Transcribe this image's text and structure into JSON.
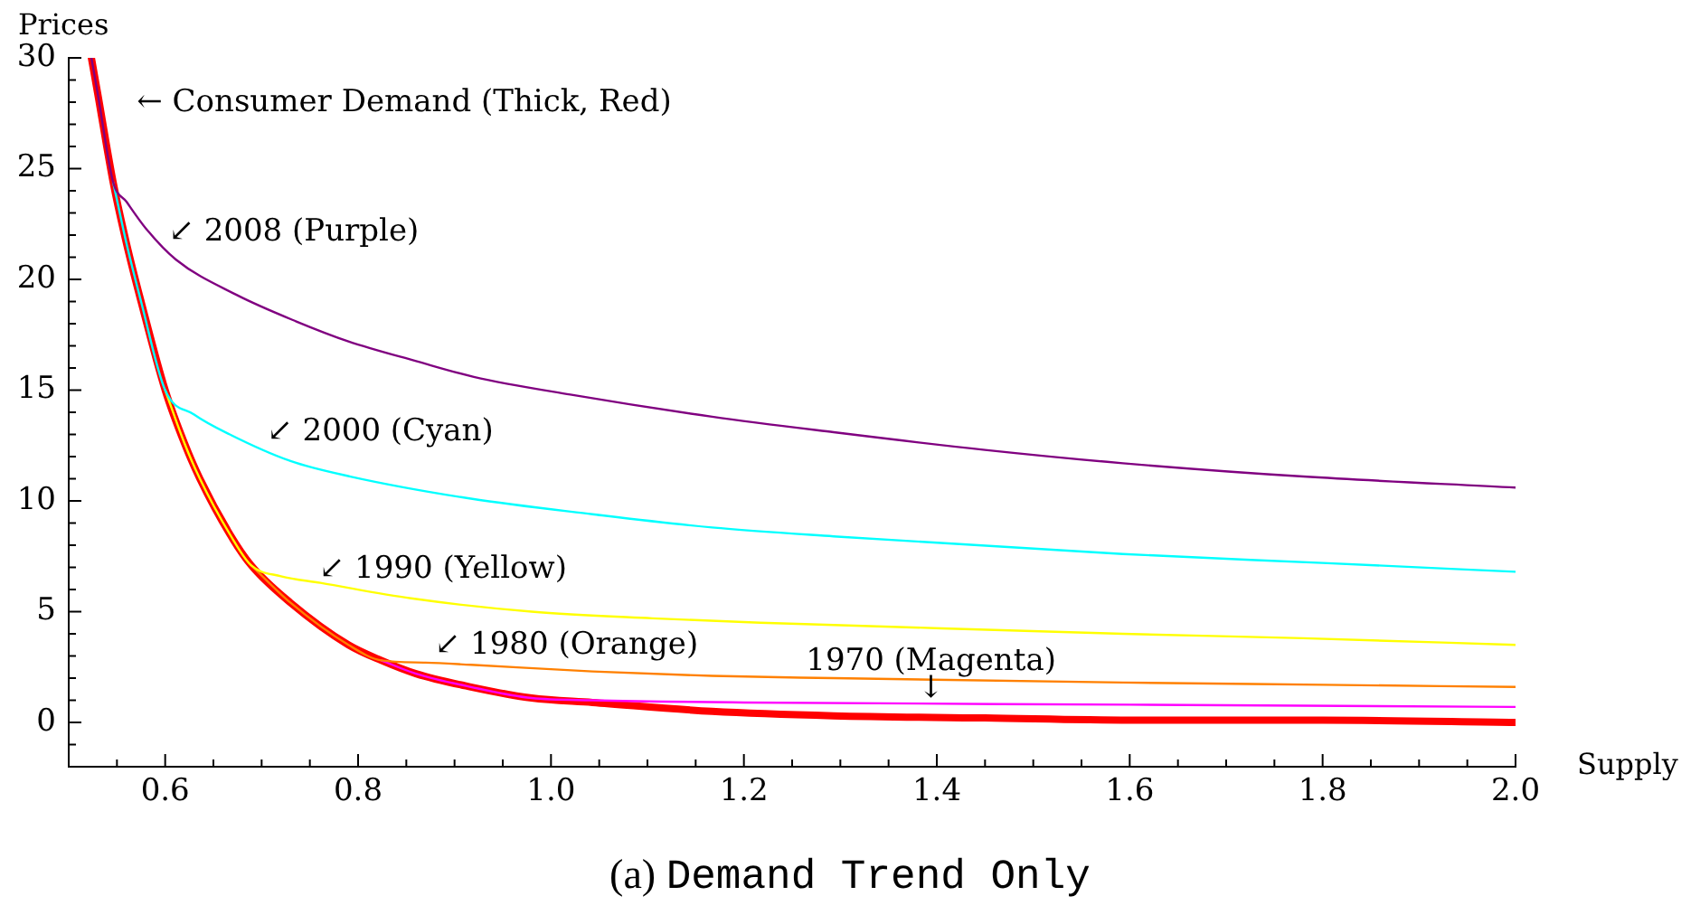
{
  "chart_data": {
    "type": "line",
    "title": "(a) Demand Trend Only",
    "xlabel": "Supply",
    "ylabel": "Prices",
    "xlim": [
      0.5,
      2.0
    ],
    "ylim": [
      -2,
      30
    ],
    "xticks": [
      {
        "value": 0.55,
        "label": null
      },
      0.6,
      {
        "value": 0.65,
        "label": null
      },
      {
        "value": 0.7,
        "label": null
      },
      {
        "value": 0.75,
        "label": null
      },
      0.8,
      {
        "value": 0.85,
        "label": null
      },
      {
        "value": 0.9,
        "label": null
      },
      {
        "value": 0.95,
        "label": null
      },
      {
        "value": 1,
        "label": "1.0"
      },
      {
        "value": 1.05,
        "label": null
      },
      {
        "value": 1.1,
        "label": null
      },
      {
        "value": 1.15,
        "label": null
      },
      1.2,
      {
        "value": 1.25,
        "label": null
      },
      {
        "value": 1.3,
        "label": null
      },
      {
        "value": 1.35,
        "label": null
      },
      1.4,
      {
        "value": 1.45,
        "label": null
      },
      {
        "value": 1.5,
        "label": null
      },
      {
        "value": 1.55,
        "label": null
      },
      1.6,
      {
        "value": 1.65,
        "label": null
      },
      {
        "value": 1.7,
        "label": null
      },
      {
        "value": 1.75,
        "label": null
      },
      1.8,
      {
        "value": 1.85,
        "label": null
      },
      {
        "value": 1.9,
        "label": null
      },
      {
        "value": 1.95,
        "label": null
      },
      {
        "value": 2,
        "label": "2.0"
      }
    ],
    "yticks": [
      {
        "value": -1,
        "label": null
      },
      0,
      {
        "value": 1,
        "label": null
      },
      {
        "value": 2,
        "label": null
      },
      {
        "value": 3,
        "label": null
      },
      {
        "value": 4,
        "label": null
      },
      5,
      {
        "value": 6,
        "label": null
      },
      {
        "value": 7,
        "label": null
      },
      {
        "value": 8,
        "label": null
      },
      {
        "value": 9,
        "label": null
      },
      10,
      {
        "value": 11,
        "label": null
      },
      {
        "value": 12,
        "label": null
      },
      {
        "value": 13,
        "label": null
      },
      {
        "value": 14,
        "label": null
      },
      15,
      {
        "value": 16,
        "label": null
      },
      {
        "value": 17,
        "label": null
      },
      {
        "value": 18,
        "label": null
      },
      {
        "value": 19,
        "label": null
      },
      20,
      {
        "value": 21,
        "label": null
      },
      {
        "value": 22,
        "label": null
      },
      {
        "value": 23,
        "label": null
      },
      {
        "value": 24,
        "label": null
      },
      25,
      {
        "value": 26,
        "label": null
      },
      {
        "value": 27,
        "label": null
      },
      {
        "value": 28,
        "label": null
      },
      {
        "value": 29,
        "label": null
      },
      30
    ],
    "series": [
      {
        "name": "← Consumer Demand (Thick, Red)",
        "color": "#ff0000",
        "x": [
          0.5235,
          0.53,
          0.546,
          0.56,
          0.575,
          0.6,
          0.62,
          0.636,
          0.667,
          0.689,
          0.73,
          0.79,
          0.824,
          0.86,
          0.917,
          0.98,
          1.043,
          1.167,
          1.293,
          1.45,
          1.6,
          1.8,
          2.0
        ],
        "values": [
          30,
          28.4,
          24.4,
          21.6,
          19.0,
          15.0,
          12.6,
          11.0,
          8.5,
          7.1,
          5.4,
          3.5,
          2.8,
          2.2,
          1.6,
          1.1,
          0.9,
          0.5,
          0.3,
          0.2,
          0.1,
          0.1,
          0.0
        ]
      },
      {
        "name": "↙ 2008 (Purple)",
        "color": "#800080",
        "x": [
          0.5235,
          0.53,
          0.546,
          0.56,
          0.58,
          0.611,
          0.674,
          0.736,
          0.79,
          0.861,
          0.92,
          1.02,
          1.167,
          1.293,
          1.45,
          1.593,
          1.78,
          2.0
        ],
        "values": [
          30,
          28.4,
          24.4,
          23.5,
          22.3,
          20.9,
          19.3,
          18.1,
          17.2,
          16.3,
          15.6,
          14.8,
          13.8,
          13.1,
          12.3,
          11.7,
          11.1,
          10.6
        ]
      },
      {
        "name": "↙ 2000 (Cyan)",
        "color": "#00ffff",
        "x": [
          0.546,
          0.56,
          0.575,
          0.6,
          0.63,
          0.667,
          0.73,
          0.792,
          0.917,
          1.043,
          1.167,
          1.293,
          1.593,
          1.8,
          2.0
        ],
        "values": [
          24.4,
          21.6,
          19.0,
          15.0,
          13.9,
          13.0,
          11.8,
          11.1,
          10.1,
          9.4,
          8.8,
          8.4,
          7.6,
          7.2,
          6.8
        ]
      },
      {
        "name": "↙ 1990 (Yellow)",
        "color": "#ffff00",
        "x": [
          0.6,
          0.62,
          0.636,
          0.667,
          0.689,
          0.72,
          0.761,
          0.855,
          0.98,
          1.105,
          1.217,
          1.293,
          1.593,
          1.78,
          2.0
        ],
        "values": [
          15.0,
          12.6,
          11.0,
          8.5,
          7.1,
          6.6,
          6.3,
          5.6,
          5.0,
          4.7,
          4.5,
          4.4,
          4.0,
          3.8,
          3.5
        ]
      },
      {
        "name": "↙ 1980 (Orange)",
        "color": "#ff8000",
        "x": [
          0.689,
          0.73,
          0.79,
          0.824,
          0.87,
          0.917,
          1.043,
          1.167,
          1.293,
          1.593,
          1.8,
          2.0
        ],
        "values": [
          7.1,
          5.4,
          3.5,
          2.8,
          2.7,
          2.6,
          2.3,
          2.1,
          2.0,
          1.8,
          1.7,
          1.6
        ]
      },
      {
        "name": "1970 (Magenta)\n↓",
        "color": "#ff00ff",
        "x": [
          0.824,
          0.86,
          0.917,
          0.98,
          1.043,
          1.2,
          1.6,
          2.0
        ],
        "values": [
          2.8,
          2.2,
          1.6,
          1.1,
          1.0,
          0.9,
          0.8,
          0.7
        ]
      }
    ]
  }
}
